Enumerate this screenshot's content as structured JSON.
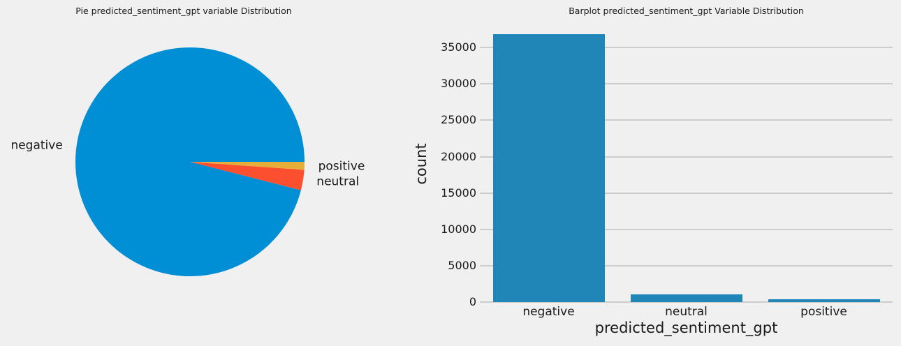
{
  "figure": {
    "background_color": "#f0f0f0",
    "grid_color": "#cccccc",
    "text_color": "#1a1a1a"
  },
  "chart_data": [
    {
      "type": "pie",
      "title": "Pie predicted_sentiment_gpt variable Distribution",
      "categories": [
        "negative",
        "neutral",
        "positive"
      ],
      "values": [
        36870,
        1100,
        430
      ],
      "colors": [
        "#008fd5",
        "#fc4f30",
        "#e5ae38"
      ],
      "start_angle_deg": 0,
      "direction": "counterclockwise",
      "label_distance": 1.12
    },
    {
      "type": "bar",
      "title": "Barplot predicted_sentiment_gpt Variable Distribution",
      "xlabel": "predicted_sentiment_gpt",
      "ylabel": "count",
      "categories": [
        "negative",
        "neutral",
        "positive"
      ],
      "values": [
        36870,
        1100,
        430
      ],
      "bar_color": "#2086b8",
      "yticks": [
        0,
        5000,
        10000,
        15000,
        20000,
        25000,
        30000,
        35000
      ],
      "ylim": [
        0,
        37700
      ],
      "grid": true,
      "legend": false
    }
  ]
}
